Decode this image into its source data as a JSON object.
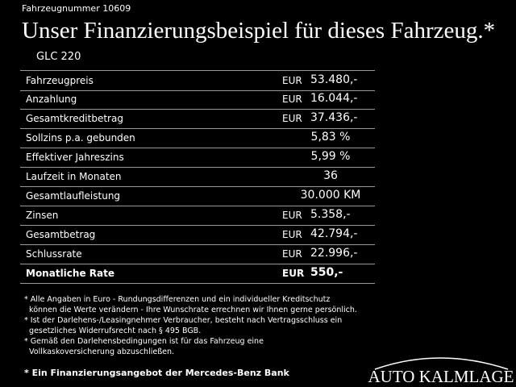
{
  "header": {
    "vehicle_number": "Fahrzeugnummer 10609",
    "title": "Unser Finanzierungsbeispiel für dieses Fahrzeug.*",
    "model": "GLC 220"
  },
  "table": {
    "rows": [
      {
        "label": "Fahrzeugpreis",
        "currency": "EUR",
        "value": "53.480,-"
      },
      {
        "label": "Anzahlung",
        "currency": "EUR",
        "value": "16.044,-"
      },
      {
        "label": "Gesamtkreditbetrag",
        "currency": "EUR",
        "value": "37.436,-"
      },
      {
        "label": "Sollzins p.a. gebunden",
        "value": "5,83 %"
      },
      {
        "label": "Effektiver Jahreszins",
        "value": "5,99 %"
      },
      {
        "label": "Laufzeit in Monaten",
        "value": "36"
      },
      {
        "label": "Gesamtlaufleistung",
        "value": "30.000 KM"
      },
      {
        "label": "Zinsen",
        "currency": "EUR",
        "value": "5.358,-"
      },
      {
        "label": "Gesamtbetrag",
        "currency": "EUR",
        "value": "42.794,-"
      },
      {
        "label": "Schlussrate",
        "currency": "EUR",
        "value": "22.996,-"
      },
      {
        "label": "Monatliche Rate",
        "currency": "EUR",
        "value": "550,-",
        "bold": true
      }
    ]
  },
  "footnotes": [
    "* Alle Angaben in Euro - Rundungsdifferenzen und ein individueller Kreditschutz",
    "  können die Werte verändern - Ihre Wunschrate errechnen wir Ihnen gerne persönlich.",
    "* Ist der Darlehens-/Leasingnehmer Verbraucher, besteht nach Vertragsschluss ein",
    "  gesetzliches Widerrufsrecht nach § 495 BGB.",
    "* Gemäß den Darlehensbedingungen ist für das Fahrzeug eine",
    "  Vollkaskoversicherung abzuschließen."
  ],
  "bank_note": "* Ein Finanzierungsangebot der Mercedes-Benz Bank",
  "logo": "AUTO KALMLAGE"
}
